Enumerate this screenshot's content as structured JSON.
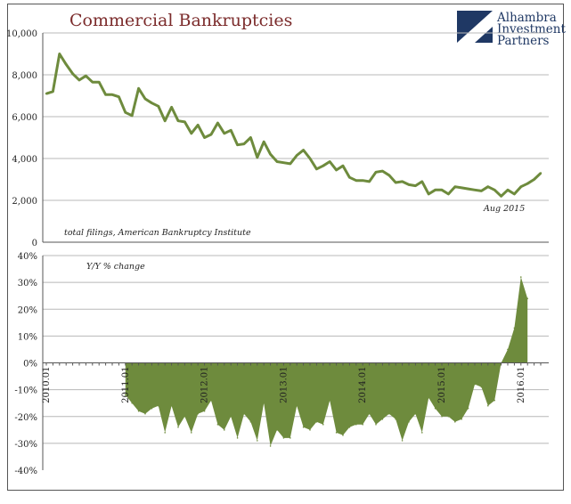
{
  "colors": {
    "series": "#6e8b3d",
    "area": "#6e8b3d",
    "grid": "#b8b8b8",
    "title": "#7b2b2b",
    "logo": "#1f3864"
  },
  "header": {
    "title": "Commercial Bankruptcies",
    "logo_lines": [
      "Alhambra",
      "Investment",
      "Partners"
    ],
    "logo_icon": "alhambra-logo-icon"
  },
  "chart_data": [
    {
      "type": "line",
      "annotation_source": "total filings, American Bankruptcy Institute",
      "annotation_date": "Aug 2015",
      "ylim": [
        0,
        10000
      ],
      "yticks": [
        "0",
        "2,000",
        "4,000",
        "6,000",
        "8,000",
        "10,000"
      ],
      "ytick_values": [
        0,
        2000,
        4000,
        6000,
        8000,
        10000
      ],
      "x_start": "2010.01",
      "series": [
        {
          "values": [
            7100,
            7200,
            9000,
            8500,
            8050,
            7750,
            7950,
            7650,
            7650,
            7050,
            7050,
            6950,
            6200,
            6050,
            7350,
            6850,
            6650,
            6500,
            5800,
            6450,
            5800,
            5750,
            5200,
            5600,
            5000,
            5150,
            5700,
            5200,
            5350,
            4650,
            4700,
            5000,
            4050,
            4800,
            4200,
            3850,
            3800,
            3750,
            4150,
            4400,
            4000,
            3500,
            3650,
            3850,
            3450,
            3650,
            3100,
            2950,
            2950,
            2900,
            3350,
            3400,
            3200,
            2850,
            2900,
            2750,
            2700,
            2900,
            2300,
            2500,
            2500,
            2300,
            2650,
            2600,
            2550,
            2500,
            2450,
            2650,
            2500,
            2200,
            2500,
            2300,
            2650,
            2800,
            3000,
            3300
          ]
        }
      ]
    },
    {
      "type": "area",
      "annotation": "Y/Y % change",
      "ylim": [
        -40,
        40
      ],
      "yticks": [
        "40%",
        "30%",
        "20%",
        "10%",
        "0%",
        "-10%",
        "-20%",
        "-30%",
        "-40%"
      ],
      "ytick_values": [
        40,
        30,
        20,
        10,
        0,
        -10,
        -20,
        -30,
        -40
      ],
      "x_labels": [
        "2010.01",
        "2011.01",
        "2012.01",
        "2013.01",
        "2014.01",
        "2015.01",
        "2016.01"
      ],
      "x_label_index": [
        0,
        12,
        24,
        36,
        48,
        60,
        72
      ],
      "yoy_start_index": 12,
      "values": [
        -12,
        -15,
        -18,
        -19,
        -17,
        -16,
        -26,
        -16,
        -24,
        -20,
        -26,
        -19,
        -18,
        -14,
        -23,
        -25,
        -20,
        -28,
        -19,
        -22,
        -29,
        -15,
        -31,
        -25,
        -28,
        -28,
        -16,
        -24,
        -25,
        -22,
        -23,
        -14,
        -26,
        -27,
        -24,
        -23,
        -23,
        -19,
        -23,
        -21,
        -19,
        -21,
        -29,
        -22,
        -19,
        -26,
        -13,
        -17,
        -20,
        -20,
        -22,
        -21,
        -17,
        -8,
        -9,
        -16,
        -14,
        0,
        5,
        13,
        32,
        24
      ]
    }
  ]
}
